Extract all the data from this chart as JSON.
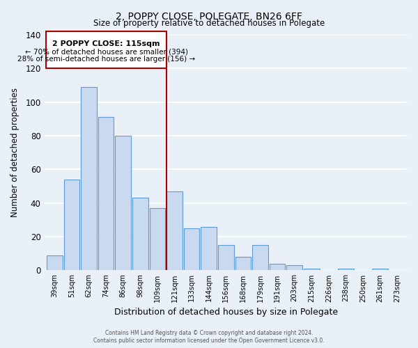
{
  "title": "2, POPPY CLOSE, POLEGATE, BN26 6FF",
  "subtitle": "Size of property relative to detached houses in Polegate",
  "xlabel": "Distribution of detached houses by size in Polegate",
  "ylabel": "Number of detached properties",
  "bar_labels": [
    "39sqm",
    "51sqm",
    "62sqm",
    "74sqm",
    "86sqm",
    "98sqm",
    "109sqm",
    "121sqm",
    "133sqm",
    "144sqm",
    "156sqm",
    "168sqm",
    "179sqm",
    "191sqm",
    "203sqm",
    "215sqm",
    "226sqm",
    "238sqm",
    "250sqm",
    "261sqm",
    "273sqm"
  ],
  "bar_values": [
    9,
    54,
    109,
    91,
    80,
    43,
    37,
    47,
    25,
    26,
    15,
    8,
    15,
    4,
    3,
    1,
    0,
    1,
    0,
    1,
    0
  ],
  "bar_color": "#c9d9f0",
  "bar_edge_color": "#5b9bd5",
  "ylim": [
    0,
    140
  ],
  "yticks": [
    0,
    20,
    40,
    60,
    80,
    100,
    120,
    140
  ],
  "vline_color": "#aa0000",
  "ann_line1": "2 POPPY CLOSE: 115sqm",
  "ann_line2": "← 70% of detached houses are smaller (394)",
  "ann_line3": "28% of semi-detached houses are larger (156) →",
  "footer_line1": "Contains HM Land Registry data © Crown copyright and database right 2024.",
  "footer_line2": "Contains public sector information licensed under the Open Government Licence v3.0.",
  "bg_color": "#eaf0f8",
  "plot_bg_color": "#eaf0f8"
}
